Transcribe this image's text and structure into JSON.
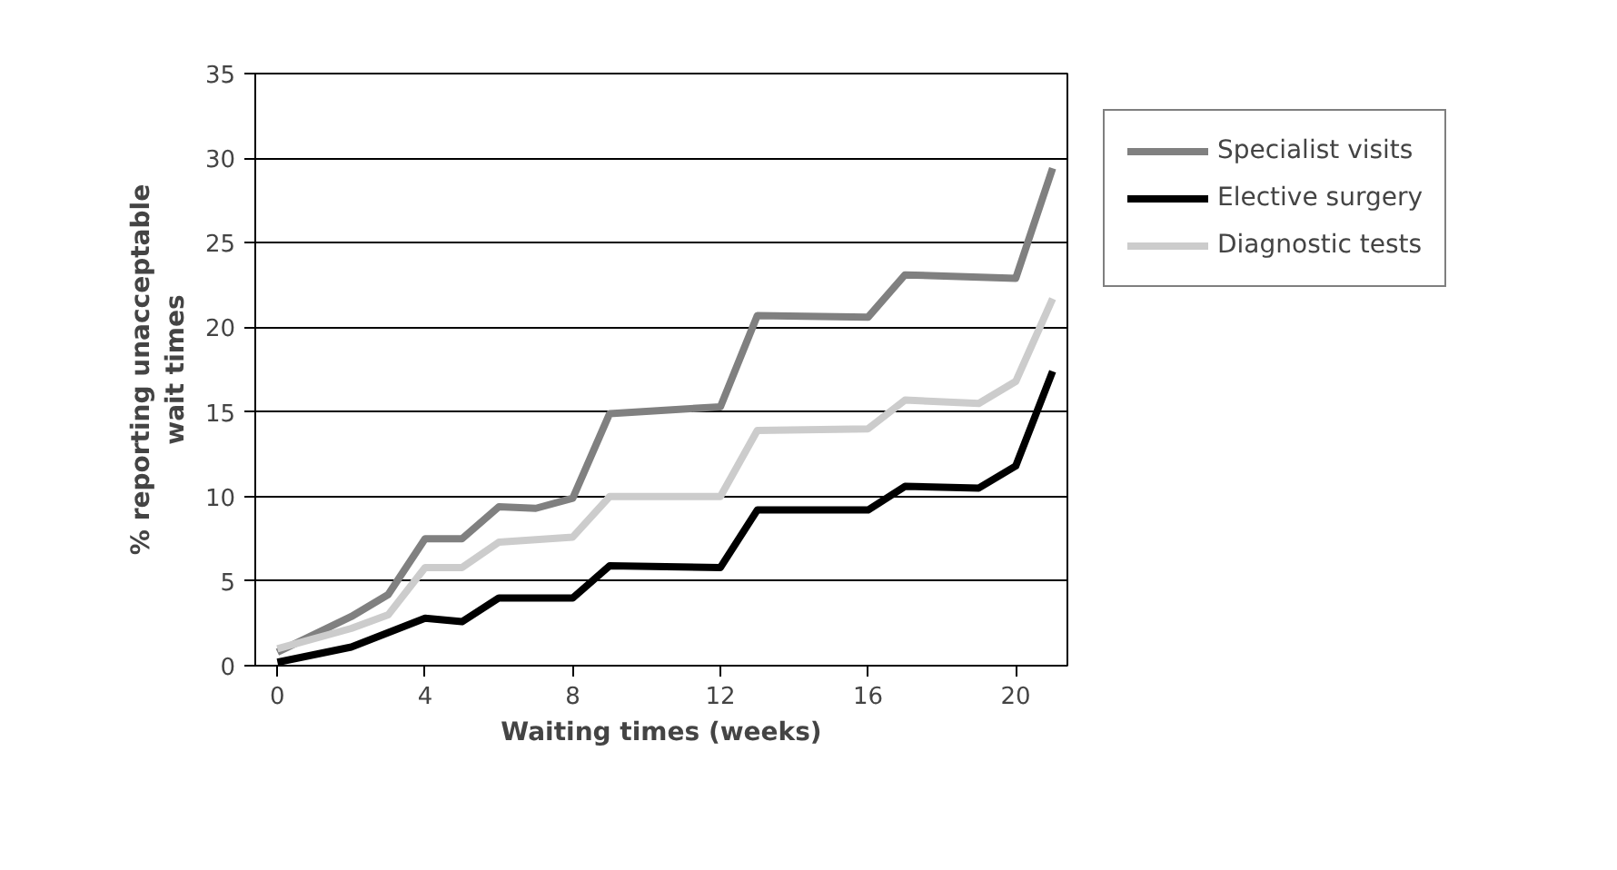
{
  "chart_data": {
    "type": "line",
    "xlabel": "Waiting times (weeks)",
    "ylabel": "% reporting unacceptable\nwait times",
    "xlim": [
      -0.6,
      21.4
    ],
    "xticks": [
      0,
      4,
      8,
      12,
      16,
      20
    ],
    "ylim": [
      0,
      35
    ],
    "yticks": [
      0,
      5,
      10,
      15,
      20,
      25,
      30,
      35
    ],
    "grid": "y",
    "legend": "right",
    "marker": "none",
    "line_style": "solid",
    "series": [
      {
        "name": "Specialist visits",
        "color": "#808080",
        "x": [
          0,
          2,
          3,
          4,
          5,
          6,
          7,
          8,
          9,
          12,
          13,
          16,
          17,
          20,
          21
        ],
        "values": [
          0.8,
          2.9,
          4.2,
          7.5,
          7.5,
          9.4,
          9.3,
          9.9,
          14.9,
          15.3,
          20.7,
          20.6,
          23.1,
          22.9,
          29.4
        ]
      },
      {
        "name": "Elective surgery",
        "color": "#000000",
        "x": [
          0,
          2,
          4,
          5,
          6,
          8,
          9,
          12,
          13,
          16,
          17,
          19,
          20,
          21
        ],
        "values": [
          0.2,
          1.1,
          2.8,
          2.6,
          4.0,
          4.0,
          5.9,
          5.8,
          9.2,
          9.2,
          10.6,
          10.5,
          11.8,
          17.4
        ]
      },
      {
        "name": "Diagnostic tests",
        "color": "#cccccc",
        "x": [
          0,
          2,
          3,
          4,
          5,
          6,
          8,
          9,
          12,
          13,
          16,
          17,
          19,
          20,
          21
        ],
        "values": [
          1.0,
          2.2,
          3.0,
          5.8,
          5.8,
          7.3,
          7.6,
          10.0,
          10.0,
          13.9,
          14.0,
          15.7,
          15.5,
          16.8,
          21.7
        ]
      }
    ]
  }
}
